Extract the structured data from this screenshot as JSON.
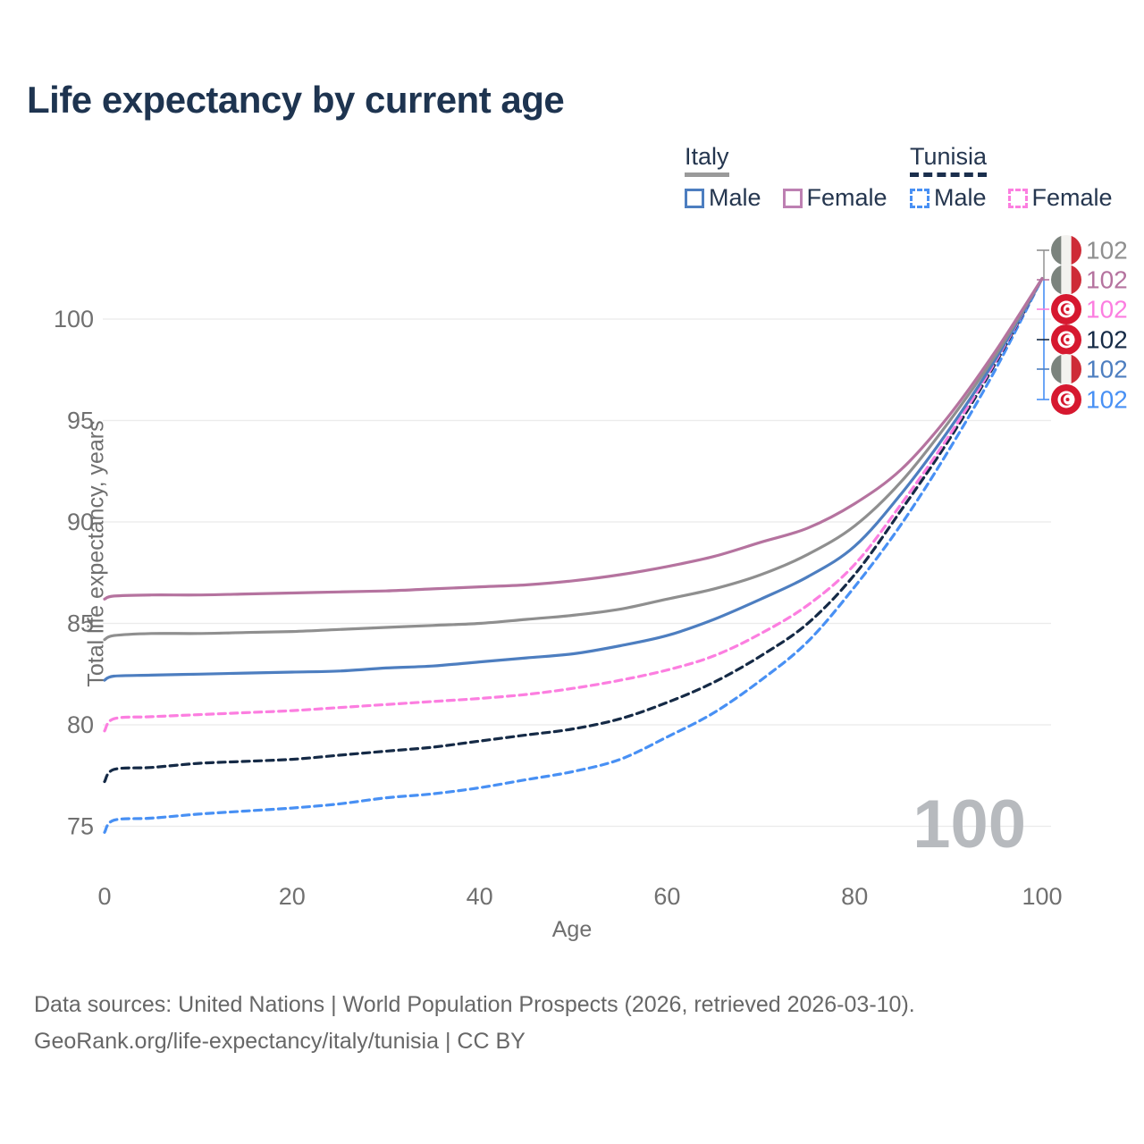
{
  "page": {
    "title": "Life expectancy by current age"
  },
  "legend": {
    "groups": [
      {
        "label": "Italy",
        "line_style": "solid",
        "underline_color": "#9a9a9a",
        "items": [
          {
            "label": "Male",
            "color": "#4d7ec0"
          },
          {
            "label": "Female",
            "color": "#bd80b2"
          }
        ]
      },
      {
        "label": "Tunisia",
        "line_style": "dashed",
        "underline_color": "#1b2f4d",
        "items": [
          {
            "label": "Male",
            "color": "#4890f4"
          },
          {
            "label": "Female",
            "color": "#fc7ee0"
          }
        ]
      }
    ]
  },
  "chart_data": {
    "type": "line",
    "title": "Life expectancy by current age",
    "xlabel": "Age",
    "ylabel": "Total life expectancy, years",
    "xlim": [
      0,
      100
    ],
    "ylim": [
      73,
      103
    ],
    "xticks": [
      0,
      20,
      40,
      60,
      80,
      100
    ],
    "yticks": [
      75,
      80,
      85,
      90,
      95,
      100
    ],
    "grid": "horizontal-only",
    "legend_position": "top-right",
    "watermark": "100",
    "x": [
      0,
      1,
      5,
      10,
      15,
      20,
      25,
      30,
      35,
      40,
      45,
      50,
      55,
      60,
      65,
      70,
      75,
      80,
      85,
      90,
      95,
      100
    ],
    "series": [
      {
        "id": "italy-female",
        "name": "Italy Female",
        "country": "Italy",
        "sex": "Female",
        "style": "solid",
        "color": "#b5739f",
        "values": [
          86.2,
          86.35,
          86.4,
          86.4,
          86.45,
          86.5,
          86.55,
          86.6,
          86.7,
          86.8,
          86.9,
          87.1,
          87.4,
          87.8,
          88.3,
          89.0,
          89.7,
          90.9,
          92.6,
          95.2,
          98.4,
          102
        ]
      },
      {
        "id": "italy-all",
        "name": "Italy (both sexes)",
        "country": "Italy",
        "sex": "All",
        "style": "solid",
        "color": "#8f8f8f",
        "values": [
          84.2,
          84.4,
          84.5,
          84.5,
          84.55,
          84.6,
          84.7,
          84.8,
          84.9,
          85.0,
          85.2,
          85.4,
          85.7,
          86.2,
          86.7,
          87.4,
          88.4,
          89.8,
          92.0,
          94.9,
          98.2,
          102
        ]
      },
      {
        "id": "italy-male",
        "name": "Italy Male",
        "country": "Italy",
        "sex": "Male",
        "style": "solid",
        "color": "#4d7ec0",
        "values": [
          82.2,
          82.4,
          82.45,
          82.5,
          82.55,
          82.6,
          82.65,
          82.8,
          82.9,
          83.1,
          83.3,
          83.5,
          83.9,
          84.4,
          85.2,
          86.2,
          87.3,
          88.8,
          91.4,
          94.5,
          98.0,
          102
        ]
      },
      {
        "id": "tunisia-female",
        "name": "Tunisia Female",
        "country": "Tunisia",
        "sex": "Female",
        "style": "dashed",
        "color": "#fc7ee0",
        "values": [
          79.7,
          80.3,
          80.4,
          80.5,
          80.6,
          80.7,
          80.85,
          81.0,
          81.15,
          81.3,
          81.5,
          81.8,
          82.2,
          82.7,
          83.4,
          84.5,
          85.9,
          87.9,
          90.9,
          94.2,
          97.9,
          102
        ]
      },
      {
        "id": "tunisia-all",
        "name": "Tunisia (both sexes)",
        "country": "Tunisia",
        "sex": "All",
        "style": "dashed",
        "color": "#152a46",
        "values": [
          77.2,
          77.8,
          77.9,
          78.1,
          78.2,
          78.3,
          78.5,
          78.7,
          78.9,
          79.2,
          79.5,
          79.8,
          80.3,
          81.1,
          82.1,
          83.4,
          85.0,
          87.4,
          90.6,
          94.0,
          97.8,
          102
        ]
      },
      {
        "id": "tunisia-male",
        "name": "Tunisia Male",
        "country": "Tunisia",
        "sex": "Male",
        "style": "dashed",
        "color": "#4890f4",
        "values": [
          74.7,
          75.3,
          75.4,
          75.6,
          75.75,
          75.9,
          76.1,
          76.4,
          76.6,
          76.9,
          77.3,
          77.7,
          78.3,
          79.4,
          80.6,
          82.2,
          84.1,
          86.8,
          89.9,
          93.5,
          97.5,
          102
        ]
      }
    ],
    "draw_order": [
      "tunisia-male",
      "tunisia-all",
      "tunisia-female",
      "italy-male",
      "italy-all",
      "italy-female"
    ],
    "end_labels": [
      {
        "series": "italy-all",
        "flag": "italy",
        "text": "102"
      },
      {
        "series": "italy-female",
        "flag": "italy",
        "text": "102"
      },
      {
        "series": "tunisia-female",
        "flag": "tunisia",
        "text": "102"
      },
      {
        "series": "tunisia-all",
        "flag": "tunisia",
        "text": "102"
      },
      {
        "series": "italy-male",
        "flag": "italy",
        "text": "102"
      },
      {
        "series": "tunisia-male",
        "flag": "tunisia",
        "text": "102"
      }
    ]
  },
  "colors": {
    "title": "#1e3450",
    "tick_label": "#707070",
    "axis_title": "#6f6f6f",
    "gridline": "#ebebeb",
    "watermark": "#b7babe",
    "leader_gray": "#9a9a9a",
    "leader_blue": "#4890f4",
    "italy_flag": [
      "#7b837d",
      "#f3f2ef",
      "#ce2b37"
    ],
    "tunisia_flag": [
      "#d6182f",
      "#ffffff"
    ]
  },
  "footer": {
    "line1": "Data sources: United Nations | World Population Prospects (2026, retrieved 2026-03-10).",
    "line2": "GeoRank.org/life-expectancy/italy/tunisia | CC BY"
  }
}
